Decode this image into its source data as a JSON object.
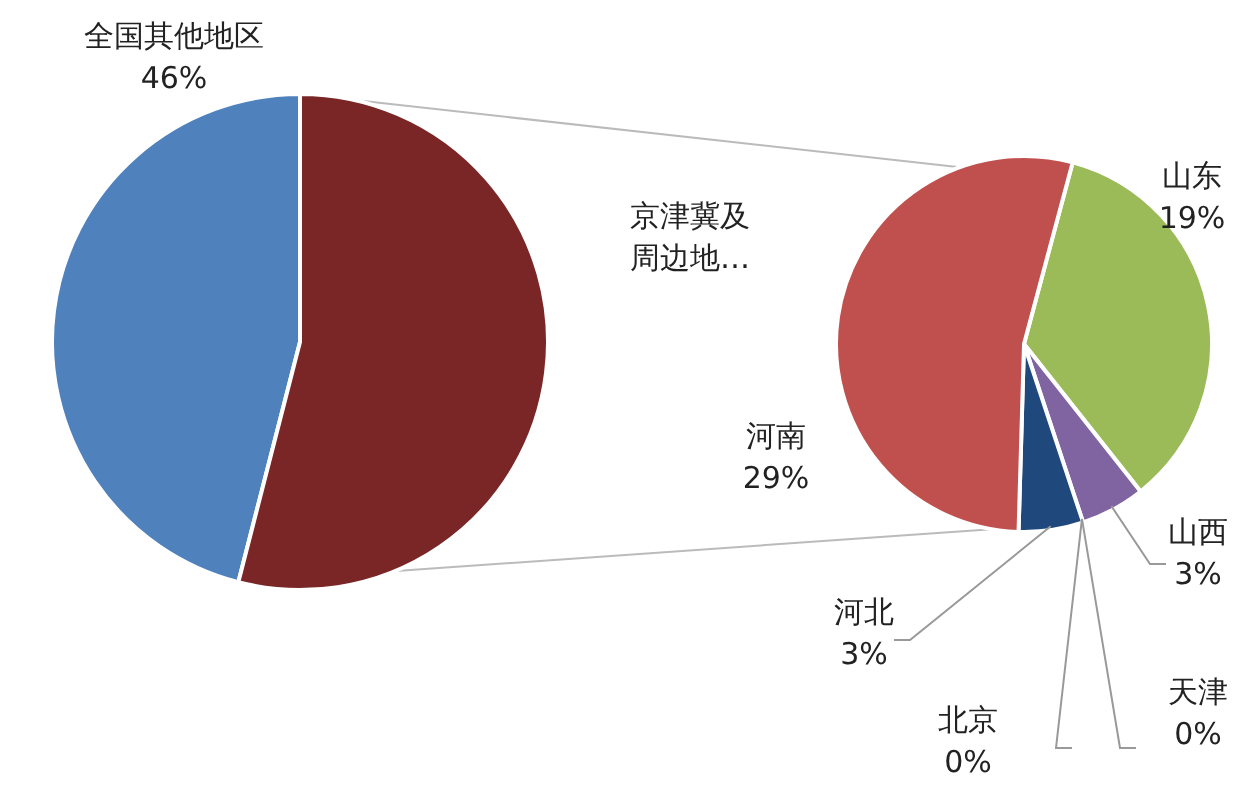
{
  "chart_data": [
    {
      "type": "pie",
      "categories": [
        "全国其他地区",
        "京津冀及周边地…"
      ],
      "values": [
        46,
        54
      ],
      "value_labels": [
        "46%",
        null
      ],
      "colors": [
        "#4f81bd",
        "#7b2626"
      ]
    },
    {
      "type": "pie",
      "categories": [
        "山东",
        "山西",
        "天津",
        "北京",
        "河北",
        "河南"
      ],
      "values": [
        19,
        3,
        0,
        0,
        3,
        29
      ],
      "value_labels": [
        "19%",
        "3%",
        "0%",
        "0%",
        "3%",
        "29%"
      ],
      "colors": [
        "#9bbb59",
        "#8064a2",
        "#4bacc6",
        "#f79646",
        "#1f497d",
        "#c0504d"
      ]
    }
  ]
}
